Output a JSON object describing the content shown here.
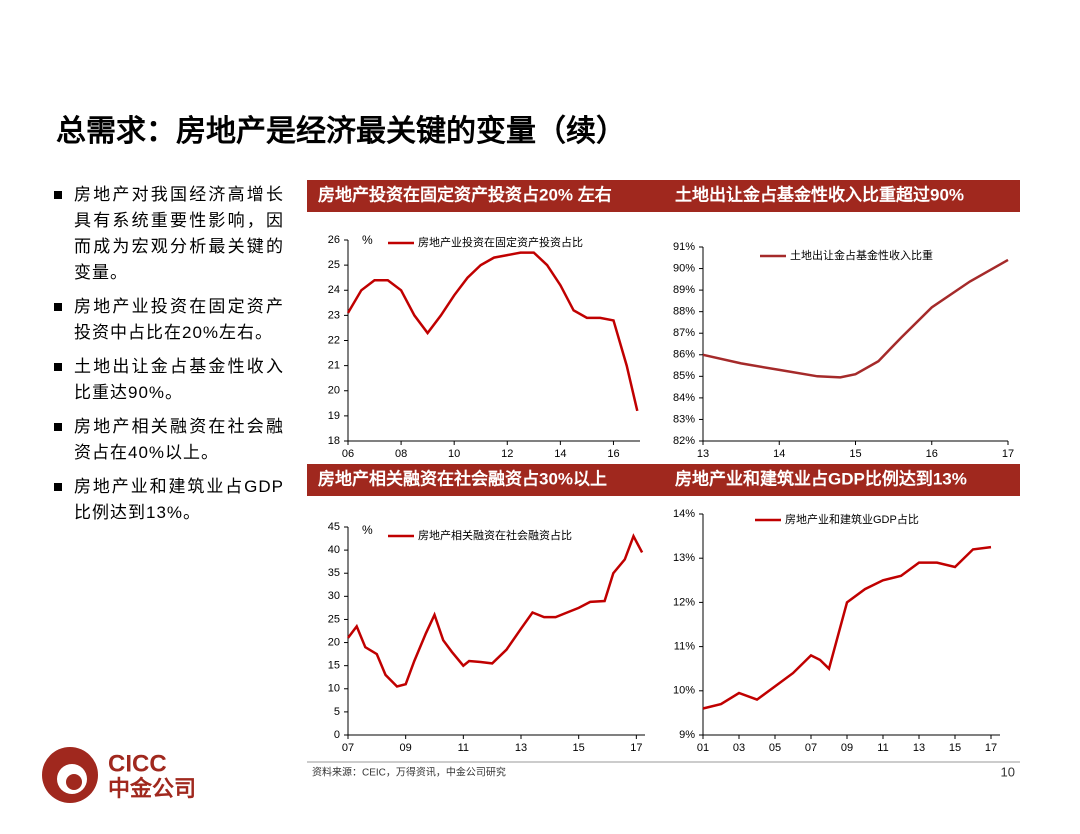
{
  "title": "总需求：房地产是经济最关键的变量（续）",
  "bullets": [
    "房地产对我国经济高增长具有系统重要性影响，因而成为宏观分析最关键的变量。",
    "房地产业投资在固定资产投资中占比在20%左右。",
    "土地出让金占基金性收入比重达90%。",
    "房地产相关融资在社会融资占在40%以上。",
    "房地产业和建筑业占GDP比例达到13%。"
  ],
  "source": "资料来源：CEIC，万得资讯，中金公司研究",
  "page_number": "10",
  "logo": {
    "name": "CICC",
    "name_cn": "中金公司"
  },
  "chart_data": [
    {
      "type": "line",
      "title": "房地产投资在固定资产投资占20% 左右",
      "y_unit": "%",
      "x": [
        6.0,
        6.5,
        7.0,
        7.5,
        8.0,
        8.5,
        9.0,
        9.5,
        10.0,
        10.5,
        11.0,
        11.5,
        12.0,
        12.5,
        13.0,
        13.5,
        14.0,
        14.5,
        15.0,
        15.5,
        16.0,
        16.5,
        16.9
      ],
      "series": [
        {
          "name": "房地产业投资在固定资产投资占比",
          "color": "#c00000",
          "values": [
            23.1,
            24.0,
            24.4,
            24.4,
            24.0,
            23.0,
            22.3,
            23.0,
            23.8,
            24.5,
            25.0,
            25.3,
            25.4,
            25.5,
            25.5,
            25.0,
            24.2,
            23.2,
            22.9,
            22.9,
            22.8,
            21.0,
            19.2
          ]
        }
      ],
      "xlim": [
        6,
        17
      ],
      "xticks": [
        {
          "value": 6,
          "label": "06"
        },
        {
          "value": 8,
          "label": "08"
        },
        10,
        12,
        14,
        16
      ],
      "ylim": [
        18,
        26
      ],
      "yticks": [
        18,
        19,
        20,
        21,
        22,
        23,
        24,
        25,
        26
      ]
    },
    {
      "type": "line",
      "title": "土地出让金占基金性收入比重超过90%",
      "x": [
        13.0,
        13.5,
        14.0,
        14.5,
        14.8,
        15.0,
        15.3,
        15.6,
        16.0,
        16.5,
        17.0
      ],
      "series": [
        {
          "name": "土地出让金占基金性收入比重",
          "color": "#a52a2a",
          "values": [
            86.0,
            85.6,
            85.3,
            85.0,
            84.95,
            85.1,
            85.7,
            86.8,
            88.2,
            89.4,
            90.4
          ]
        }
      ],
      "xlim": [
        13,
        17
      ],
      "xticks": [
        13,
        14,
        15,
        16,
        17
      ],
      "ylim": [
        82,
        91
      ],
      "yticks": [
        {
          "value": 82,
          "label": "82%"
        },
        {
          "value": 83,
          "label": "83%"
        },
        {
          "value": 84,
          "label": "84%"
        },
        {
          "value": 85,
          "label": "85%"
        },
        {
          "value": 86,
          "label": "86%"
        },
        {
          "value": 87,
          "label": "87%"
        },
        {
          "value": 88,
          "label": "88%"
        },
        {
          "value": 89,
          "label": "89%"
        },
        {
          "value": 90,
          "label": "90%"
        },
        {
          "value": 91,
          "label": "91%"
        }
      ]
    },
    {
      "type": "line",
      "title": "房地产相关融资在社会融资占30%以上",
      "y_unit": "%",
      "x": [
        7.0,
        7.3,
        7.6,
        8.0,
        8.3,
        8.7,
        9.0,
        9.3,
        9.7,
        10.0,
        10.3,
        10.6,
        11.0,
        11.2,
        11.6,
        12.0,
        12.5,
        13.0,
        13.4,
        13.8,
        14.2,
        14.6,
        15.0,
        15.4,
        15.9,
        16.2,
        16.6,
        16.9,
        17.2
      ],
      "series": [
        {
          "name": "房地产相关融资在社会融资占比",
          "color": "#c00000",
          "values": [
            21,
            23.5,
            19,
            17.5,
            13,
            10.5,
            11,
            16,
            22,
            26,
            20.5,
            18,
            15,
            16,
            15.8,
            15.5,
            18.5,
            23,
            26.5,
            25.5,
            25.5,
            26.5,
            27.5,
            28.8,
            29,
            35,
            38,
            43,
            39.5
          ]
        }
      ],
      "xlim": [
        7,
        17.3
      ],
      "xticks": [
        {
          "value": 7,
          "label": "07"
        },
        {
          "value": 9,
          "label": "09"
        },
        11,
        13,
        15,
        17
      ],
      "ylim": [
        0,
        45
      ],
      "yticks": [
        0,
        5,
        10,
        15,
        20,
        25,
        30,
        35,
        40,
        45
      ]
    },
    {
      "type": "line",
      "title": "房地产业和建筑业占GDP比例达到13%",
      "x": [
        1,
        2,
        3,
        4,
        5,
        6,
        7,
        7.5,
        8,
        9,
        10,
        11,
        12,
        13,
        14,
        15,
        16,
        17
      ],
      "series": [
        {
          "name": "房地产业和建筑业GDP占比",
          "color": "#c00000",
          "values": [
            9.6,
            9.7,
            9.95,
            9.8,
            10.1,
            10.4,
            10.8,
            10.7,
            10.5,
            12.0,
            12.3,
            12.5,
            12.6,
            12.9,
            12.9,
            12.8,
            13.2,
            13.25
          ]
        }
      ],
      "xlim": [
        1,
        17.5
      ],
      "xticks": [
        {
          "value": 1,
          "label": "01"
        },
        {
          "value": 3,
          "label": "03"
        },
        {
          "value": 5,
          "label": "05"
        },
        {
          "value": 7,
          "label": "07"
        },
        {
          "value": 9,
          "label": "09"
        },
        11,
        13,
        15,
        17
      ],
      "ylim": [
        9,
        14
      ],
      "yticks": [
        {
          "value": 9,
          "label": "9%"
        },
        {
          "value": 10,
          "label": "10%"
        },
        {
          "value": 11,
          "label": "11%"
        },
        {
          "value": 12,
          "label": "12%"
        },
        {
          "value": 13,
          "label": "13%"
        },
        {
          "value": 14,
          "label": "14%"
        }
      ]
    }
  ]
}
